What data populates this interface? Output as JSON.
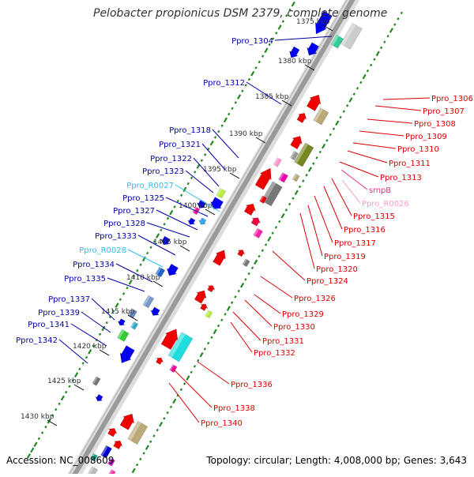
{
  "title": "Pelobacter propionicus DSM 2379, complete genome",
  "footer": {
    "accession": "Accession: NC_008609",
    "summary": "Topology: circular; Length: 4,008,000 bp; Genes: 3,643"
  },
  "colors": {
    "left_label": "#0000aa",
    "right_label": "#dd0000",
    "rna_left": "#33bbee",
    "rna_right": "#ff99cc",
    "backbone": "#9a9a9a",
    "tick_dots": "#228822"
  },
  "ruler": [
    {
      "label": "1375 kbp"
    },
    {
      "label": "1380 kbp"
    },
    {
      "label": "1385 kbp"
    },
    {
      "label": "1390 kbp"
    },
    {
      "label": "1395 kbp"
    },
    {
      "label": "1400 kbp"
    },
    {
      "label": "1405 kbp"
    },
    {
      "label": "1410 kbp"
    },
    {
      "label": "1415 kbp"
    },
    {
      "label": "1420 kbp"
    },
    {
      "label": "1425 kbp"
    },
    {
      "label": "1430 kbp"
    }
  ],
  "left_labels": [
    {
      "text": "Ppro_1304",
      "type": "gene"
    },
    {
      "text": "Ppro_1312",
      "type": "gene"
    },
    {
      "text": "Ppro_1318",
      "type": "gene"
    },
    {
      "text": "Ppro_1321",
      "type": "gene"
    },
    {
      "text": "Ppro_1322",
      "type": "gene"
    },
    {
      "text": "Ppro_1323",
      "type": "gene"
    },
    {
      "text": "Ppro_R0027",
      "type": "rna"
    },
    {
      "text": "Ppro_1325",
      "type": "gene"
    },
    {
      "text": "Ppro_1327",
      "type": "gene"
    },
    {
      "text": "Ppro_1328",
      "type": "gene"
    },
    {
      "text": "Ppro_1333",
      "type": "gene"
    },
    {
      "text": "Ppro_R0028",
      "type": "rna"
    },
    {
      "text": "Ppro_1334",
      "type": "gene"
    },
    {
      "text": "Ppro_1335",
      "type": "gene"
    },
    {
      "text": "Ppro_1337",
      "type": "gene"
    },
    {
      "text": "Ppro_1339",
      "type": "gene"
    },
    {
      "text": "Ppro_1341",
      "type": "gene"
    },
    {
      "text": "Ppro_1342",
      "type": "gene"
    }
  ],
  "right_labels": [
    {
      "text": "Ppro_1306",
      "type": "gene"
    },
    {
      "text": "Ppro_1307",
      "type": "gene"
    },
    {
      "text": "Ppro_1308",
      "type": "gene"
    },
    {
      "text": "Ppro_1309",
      "type": "gene"
    },
    {
      "text": "Ppro_1310",
      "type": "gene"
    },
    {
      "text": "Ppro_1311",
      "type": "gene"
    },
    {
      "text": "Ppro_1313",
      "type": "gene"
    },
    {
      "text": "smpB",
      "type": "gene-pink"
    },
    {
      "text": "Ppro_R0026",
      "type": "rna"
    },
    {
      "text": "Ppro_1315",
      "type": "gene"
    },
    {
      "text": "Ppro_1316",
      "type": "gene"
    },
    {
      "text": "Ppro_1317",
      "type": "gene"
    },
    {
      "text": "Ppro_1319",
      "type": "gene"
    },
    {
      "text": "Ppro_1320",
      "type": "gene"
    },
    {
      "text": "Ppro_1324",
      "type": "gene"
    },
    {
      "text": "Ppro_1326",
      "type": "gene"
    },
    {
      "text": "Ppro_1329",
      "type": "gene"
    },
    {
      "text": "Ppro_1330",
      "type": "gene"
    },
    {
      "text": "Ppro_1331",
      "type": "gene"
    },
    {
      "text": "Ppro_1332",
      "type": "gene"
    },
    {
      "text": "Ppro_1336",
      "type": "gene"
    },
    {
      "text": "Ppro_1338",
      "type": "gene"
    },
    {
      "text": "Ppro_1340",
      "type": "gene"
    }
  ]
}
